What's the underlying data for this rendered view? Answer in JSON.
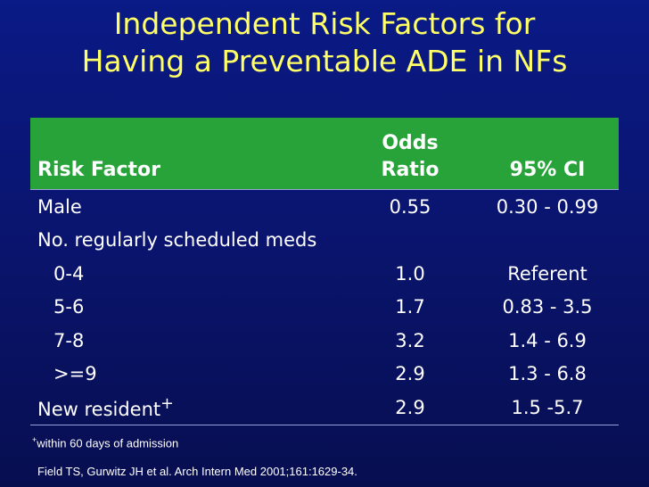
{
  "title": {
    "line1": "Independent Risk Factors for",
    "line2": "Having a Preventable ADE in NFs"
  },
  "table": {
    "headers": {
      "risk_factor": "Risk Factor",
      "odds_line1": "Odds",
      "odds_line2": "Ratio",
      "ci": "95% CI"
    },
    "rows": [
      {
        "factor": "Male",
        "odds": "0.55",
        "ci": "0.30 - 0.99"
      },
      {
        "factor": "No. regularly scheduled meds",
        "odds": "",
        "ci": ""
      },
      {
        "factor": "0-4",
        "odds": "1.0",
        "ci": "Referent"
      },
      {
        "factor": "5-6",
        "odds": "1.7",
        "ci": "0.83 - 3.5"
      },
      {
        "factor": "7-8",
        "odds": "3.2",
        "ci": "1.4 - 6.9"
      },
      {
        "factor": ">=9",
        "odds": "2.9",
        "ci": "1.3 - 6.8"
      },
      {
        "factor": "New resident",
        "factor_sup": "+",
        "odds": "2.9",
        "ci": "1.5 -5.7"
      }
    ]
  },
  "footnote": {
    "marker": "+",
    "text": "within 60 days of admission"
  },
  "citation": "Field TS, Gurwitz JH et al. Arch Intern Med 2001;161:1629-34.",
  "colors": {
    "background": "#0a1a86",
    "title": "#ffff66",
    "header_bg": "#27a33a",
    "text": "#ffffff"
  }
}
